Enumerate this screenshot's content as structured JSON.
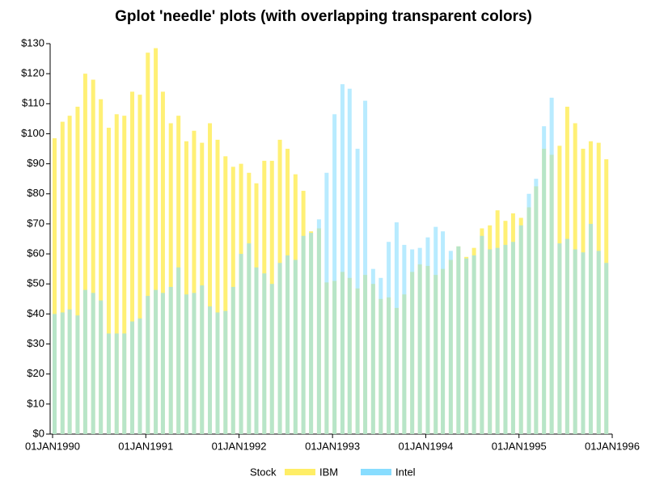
{
  "chart_data": {
    "type": "needle",
    "title": "Gplot 'needle' plots (with overlapping transparent colors)",
    "legend_title": "Stock",
    "x": [
      "1990-01-01",
      "1990-02-01",
      "1990-03-01",
      "1990-04-01",
      "1990-05-01",
      "1990-06-01",
      "1990-07-01",
      "1990-08-01",
      "1990-09-01",
      "1990-10-01",
      "1990-11-01",
      "1990-12-01",
      "1991-01-01",
      "1991-02-01",
      "1991-03-01",
      "1991-04-01",
      "1991-05-01",
      "1991-06-01",
      "1991-07-01",
      "1991-08-01",
      "1991-09-01",
      "1991-10-01",
      "1991-11-01",
      "1991-12-01",
      "1992-01-01",
      "1992-02-01",
      "1992-03-01",
      "1992-04-01",
      "1992-05-01",
      "1992-06-01",
      "1992-07-01",
      "1992-08-01",
      "1992-09-01",
      "1992-10-01",
      "1992-11-01",
      "1992-12-01",
      "1993-01-01",
      "1993-02-01",
      "1993-03-01",
      "1993-04-01",
      "1993-05-01",
      "1993-06-01",
      "1993-07-01",
      "1993-08-01",
      "1993-09-01",
      "1993-10-01",
      "1993-11-01",
      "1993-12-01",
      "1994-01-01",
      "1994-02-01",
      "1994-03-01",
      "1994-04-01",
      "1994-05-01",
      "1994-06-01",
      "1994-07-01",
      "1994-08-01",
      "1994-09-01",
      "1994-10-01",
      "1994-11-01",
      "1994-12-01",
      "1995-01-01",
      "1995-02-01",
      "1995-03-01",
      "1995-04-01",
      "1995-05-01",
      "1995-06-01",
      "1995-07-01",
      "1995-08-01",
      "1995-09-01",
      "1995-10-01",
      "1995-11-01",
      "1995-12-01"
    ],
    "series": [
      {
        "name": "IBM",
        "color": "#ffee66",
        "values": [
          98.5,
          104,
          106,
          109,
          120,
          118,
          111.5,
          102,
          106.5,
          106,
          114,
          113,
          127,
          128.5,
          114,
          103.5,
          106,
          97.5,
          101,
          97,
          103.5,
          98,
          92.5,
          89,
          90,
          87,
          83.5,
          91,
          91,
          98,
          95,
          86.5,
          81,
          67.5,
          68.5,
          50.5,
          51,
          54,
          52,
          48.5,
          53,
          50,
          45,
          45.5,
          42,
          46.5,
          54,
          56.5,
          56,
          53,
          55,
          58,
          62.5,
          59,
          62,
          68.5,
          69.5,
          74.5,
          71,
          73.5,
          72,
          75.5,
          82.5,
          95,
          93,
          96,
          109,
          103.5,
          95,
          97.5,
          97,
          91.5
        ]
      },
      {
        "name": "Intel",
        "color": "#88ddff",
        "values": [
          40,
          40.5,
          41.5,
          39.5,
          48,
          47,
          44.5,
          33.5,
          33.5,
          33.5,
          37.5,
          38.5,
          46,
          48,
          47,
          49,
          55.5,
          46.5,
          47,
          49.5,
          42.5,
          40.5,
          41,
          49,
          60,
          63.5,
          55.5,
          53.5,
          50,
          57,
          59.5,
          58,
          66,
          67,
          71.5,
          87,
          106.5,
          116.5,
          115,
          95,
          111,
          55,
          52,
          64,
          70.5,
          63,
          61.5,
          62,
          65.5,
          69,
          67.5,
          61,
          62.5,
          58.5,
          59.5,
          66,
          61.5,
          62,
          63,
          64,
          69.5,
          80,
          85,
          102.5,
          112,
          63.5,
          65,
          61.5,
          60.5,
          70,
          61,
          57
        ]
      }
    ],
    "xlim": [
      "1990-01-01",
      "1996-01-01"
    ],
    "xticks": [
      {
        "value": "1990-01-01",
        "label": "01JAN1990"
      },
      {
        "value": "1991-01-01",
        "label": "01JAN1991"
      },
      {
        "value": "1992-01-01",
        "label": "01JAN1992"
      },
      {
        "value": "1993-01-01",
        "label": "01JAN1993"
      },
      {
        "value": "1994-01-01",
        "label": "01JAN1994"
      },
      {
        "value": "1995-01-01",
        "label": "01JAN1995"
      },
      {
        "value": "1996-01-01",
        "label": "01JAN1996"
      }
    ],
    "ylim": [
      0,
      130
    ],
    "yticks": [
      {
        "value": 0,
        "label": "$0"
      },
      {
        "value": 10,
        "label": "$10"
      },
      {
        "value": 20,
        "label": "$20"
      },
      {
        "value": 30,
        "label": "$30"
      },
      {
        "value": 40,
        "label": "$40"
      },
      {
        "value": 50,
        "label": "$50"
      },
      {
        "value": 60,
        "label": "$60"
      },
      {
        "value": 70,
        "label": "$70"
      },
      {
        "value": 80,
        "label": "$80"
      },
      {
        "value": 90,
        "label": "$90"
      },
      {
        "value": 100,
        "label": "$100"
      },
      {
        "value": 110,
        "label": "$110"
      },
      {
        "value": 120,
        "label": "$120"
      },
      {
        "value": 130,
        "label": "$130"
      }
    ]
  }
}
